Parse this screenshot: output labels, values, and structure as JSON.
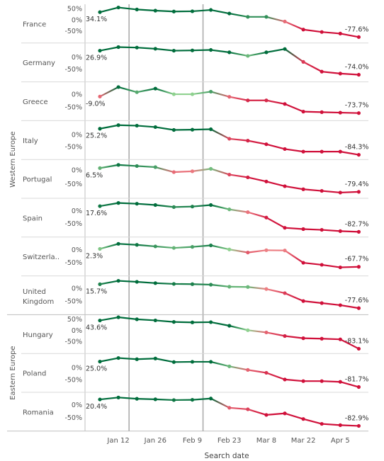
{
  "chart_data": {
    "type": "line",
    "xlabel": "Search date",
    "x_ticks": [
      "Jan 12",
      "Jan 26",
      "Feb 9",
      "Feb 23",
      "Mar 8",
      "Mar 22",
      "Apr 5"
    ],
    "x_dates": [
      "Jan 5",
      "Jan 12",
      "Jan 19",
      "Jan 26",
      "Feb 2",
      "Feb 9",
      "Feb 16",
      "Feb 23",
      "Mar 1",
      "Mar 8",
      "Mar 15",
      "Mar 22",
      "Mar 29",
      "Apr 5",
      "Apr 12"
    ],
    "reference_lines": [
      "Jan 19",
      "Feb 16"
    ],
    "colors": {
      "positive_strong": "#006d3c",
      "positive_light": "#8fd18f",
      "negative_light": "#f08c8c",
      "negative_strong": "#d0103a",
      "grid": "#d9d9d9",
      "text": "#555555"
    },
    "groups": [
      {
        "name": "Western Europe",
        "rows": [
          0,
          7
        ]
      },
      {
        "name": "Eastern Europe",
        "rows": [
          8,
          10
        ]
      }
    ],
    "rows": [
      {
        "country": "France",
        "ticks": [
          {
            "v": 50,
            "label": "50%"
          },
          {
            "v": 0,
            "label": "0%"
          },
          {
            "v": -50,
            "label": "-50%"
          }
        ],
        "ylim": [
          -95,
          60
        ],
        "first_label": "34.1%",
        "last_label": "-77.6%",
        "values": [
          34.1,
          55,
          46,
          41,
          37,
          38,
          44,
          28,
          13,
          13,
          -8,
          -44,
          -55,
          -62,
          -77.6
        ]
      },
      {
        "country": "Germany",
        "ticks": [
          {
            "v": 0,
            "label": "0%"
          },
          {
            "v": -50,
            "label": "-50%"
          }
        ],
        "ylim": [
          -95,
          50
        ],
        "first_label": "26.9%",
        "last_label": "-74.0%",
        "values": [
          26.9,
          42,
          40,
          35,
          27,
          28,
          30,
          20,
          5,
          20,
          34,
          -20,
          -61,
          -69,
          -74.0
        ]
      },
      {
        "country": "Greece",
        "ticks": [
          {
            "v": 0,
            "label": "0%"
          },
          {
            "v": -50,
            "label": "-50%"
          }
        ],
        "ylim": [
          -95,
          40
        ],
        "first_label": "-9.0%",
        "last_label": "-73.7%",
        "values": [
          -9.0,
          28,
          8,
          22,
          0,
          0,
          10,
          -10,
          -24,
          -24,
          -38,
          -68,
          -70,
          -72,
          -73.7
        ]
      },
      {
        "country": "Italy",
        "ticks": [
          {
            "v": 0,
            "label": "0%"
          },
          {
            "v": -50,
            "label": "-50%"
          }
        ],
        "ylim": [
          -95,
          50
        ],
        "first_label": "25.2%",
        "last_label": "-84.3%",
        "values": [
          25.2,
          40,
          38,
          32,
          20,
          21,
          23,
          -17,
          -25,
          -40,
          -60,
          -71,
          -71,
          -71,
          -84.3
        ]
      },
      {
        "country": "Portugal",
        "ticks": [
          {
            "v": 0,
            "label": "0%"
          },
          {
            "v": -50,
            "label": "-50%"
          }
        ],
        "ylim": [
          -95,
          30
        ],
        "first_label": "6.5%",
        "last_label": "-79.4%",
        "values": [
          6.5,
          18,
          14,
          10,
          -8,
          -5,
          4,
          -17,
          -27,
          -42,
          -59,
          -70,
          -76,
          -82,
          -79.4
        ]
      },
      {
        "country": "Spain",
        "ticks": [
          {
            "v": 0,
            "label": "0%"
          },
          {
            "v": -50,
            "label": "-50%"
          }
        ],
        "ylim": [
          -95,
          40
        ],
        "first_label": "17.6%",
        "last_label": "-82.7%",
        "values": [
          17.6,
          30,
          27,
          22,
          14,
          16,
          22,
          5,
          -6,
          -27,
          -67,
          -72,
          -75,
          -80,
          -82.7
        ]
      },
      {
        "country": "Switzerla..",
        "ticks": [
          {
            "v": 0,
            "label": "0%"
          },
          {
            "v": -50,
            "label": "-50%"
          }
        ],
        "ylim": [
          -95,
          40
        ],
        "first_label": "2.3%",
        "last_label": "-67.7%",
        "values": [
          2.3,
          22,
          18,
          12,
          6,
          10,
          16,
          0,
          -12,
          -3,
          -4,
          -52,
          -60,
          -70,
          -67.7
        ]
      },
      {
        "country": "United Kingdom",
        "ticks": [
          {
            "v": 0,
            "label": "0%"
          },
          {
            "v": -50,
            "label": "-50%"
          }
        ],
        "ylim": [
          -95,
          40
        ],
        "first_label": "15.7%",
        "last_label": "-77.6%",
        "values": [
          15.7,
          29,
          25,
          20,
          17,
          16,
          14,
          6,
          5,
          -3,
          -19,
          -50,
          -58,
          -66,
          -77.6
        ]
      },
      {
        "country": "Hungary",
        "ticks": [
          {
            "v": 50,
            "label": "50%"
          },
          {
            "v": 0,
            "label": "0%"
          },
          {
            "v": -50,
            "label": "-50%"
          }
        ],
        "ylim": [
          -95,
          60
        ],
        "first_label": "43.6%",
        "last_label": "-83.1%",
        "values": [
          43.6,
          58,
          49,
          44,
          37,
          35,
          36,
          20,
          0,
          -10,
          -26,
          -36,
          -38,
          -41,
          -83.1
        ]
      },
      {
        "country": "Poland",
        "ticks": [
          {
            "v": 0,
            "label": "0%"
          },
          {
            "v": -50,
            "label": "-50%"
          }
        ],
        "ylim": [
          -95,
          50
        ],
        "first_label": "25.0%",
        "last_label": "-81.7%",
        "values": [
          25.0,
          40,
          35,
          38,
          23,
          24,
          24,
          5,
          -10,
          -22,
          -50,
          -57,
          -57,
          -60,
          -81.7
        ]
      },
      {
        "country": "Romania",
        "ticks": [
          {
            "v": 0,
            "label": "0%"
          },
          {
            "v": -50,
            "label": "-50%"
          }
        ],
        "ylim": [
          -95,
          40
        ],
        "first_label": "20.4%",
        "last_label": "-82.9%",
        "values": [
          20.4,
          28,
          23,
          21,
          18,
          19,
          24,
          -12,
          -18,
          -40,
          -34,
          -56,
          -75,
          -80,
          -82.9
        ]
      }
    ]
  }
}
